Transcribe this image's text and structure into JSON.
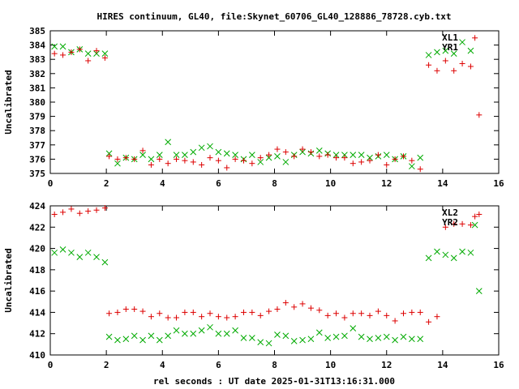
{
  "title": "HIRES continuum, GL40, file:Skynet_60706_GL40_128886_78728.cyb.txt",
  "xlabel": "rel seconds : UT date 2025-01-31T13:16:31.000",
  "colors": {
    "red": "#dd0000",
    "green": "#00aa00"
  },
  "chart_data": [
    {
      "type": "scatter",
      "ylabel": "Uncalibrated",
      "xlim": [
        0,
        16
      ],
      "ylim": [
        375,
        385
      ],
      "xticks": [
        "0",
        "2",
        "4",
        "6",
        "8",
        "10",
        "12",
        "14",
        "16"
      ],
      "yticks": [
        "375",
        "376",
        "377",
        "378",
        "379",
        "380",
        "381",
        "382",
        "383",
        "384",
        "385"
      ],
      "legend": [
        "XL1",
        "YR1"
      ],
      "legend_position": "top-right",
      "series": [
        {
          "name": "XL1",
          "marker": "x",
          "color": "green",
          "x": [
            0.15,
            0.45,
            0.75,
            1.05,
            1.35,
            1.65,
            1.95,
            2.1,
            2.4,
            2.7,
            3.0,
            3.3,
            3.6,
            3.9,
            4.2,
            4.5,
            4.8,
            5.1,
            5.4,
            5.7,
            6.0,
            6.3,
            6.6,
            6.9,
            7.2,
            7.5,
            7.8,
            8.1,
            8.4,
            8.7,
            9.0,
            9.3,
            9.6,
            9.9,
            10.2,
            10.5,
            10.8,
            11.1,
            11.4,
            11.7,
            12.0,
            12.3,
            12.6,
            12.9,
            13.2,
            13.5,
            13.8,
            14.1,
            14.4,
            14.7,
            15.0
          ],
          "y": [
            383.9,
            383.9,
            383.5,
            383.7,
            383.4,
            383.4,
            383.4,
            376.4,
            375.7,
            376.1,
            376.0,
            376.3,
            376.0,
            376.3,
            377.2,
            376.3,
            376.3,
            376.5,
            376.8,
            376.9,
            376.5,
            376.4,
            376.3,
            376.0,
            376.3,
            375.8,
            376.1,
            376.2,
            375.8,
            376.3,
            376.5,
            376.4,
            376.6,
            376.4,
            376.3,
            376.3,
            376.3,
            376.3,
            376.1,
            376.2,
            376.3,
            376.0,
            376.2,
            375.5,
            376.1,
            383.3,
            383.5,
            383.6,
            383.4,
            384.2,
            383.6
          ],
          "note_extra": [
            15.15,
            383.6
          ]
        },
        {
          "name": "YR1",
          "marker": "+",
          "color": "red",
          "x": [
            0.15,
            0.45,
            0.75,
            1.05,
            1.35,
            1.65,
            1.95,
            2.1,
            2.4,
            2.7,
            3.0,
            3.3,
            3.6,
            3.9,
            4.2,
            4.5,
            4.8,
            5.1,
            5.4,
            5.7,
            6.0,
            6.3,
            6.6,
            6.9,
            7.2,
            7.5,
            7.8,
            8.1,
            8.4,
            8.7,
            9.0,
            9.3,
            9.6,
            9.9,
            10.2,
            10.5,
            10.8,
            11.1,
            11.4,
            11.7,
            12.0,
            12.3,
            12.6,
            12.9,
            13.2,
            13.5,
            13.8,
            14.1,
            14.4,
            14.7,
            15.0,
            15.15,
            15.3
          ],
          "y": [
            383.4,
            383.3,
            383.5,
            383.7,
            382.9,
            383.6,
            383.1,
            376.2,
            376.0,
            376.1,
            376.0,
            376.6,
            375.6,
            376.0,
            375.7,
            376.0,
            375.9,
            375.8,
            375.6,
            376.1,
            375.9,
            375.4,
            376.0,
            375.9,
            375.7,
            376.1,
            376.3,
            376.7,
            376.5,
            376.2,
            376.7,
            376.5,
            376.2,
            376.3,
            376.1,
            376.1,
            375.7,
            375.8,
            375.9,
            376.3,
            375.6,
            376.0,
            376.2,
            375.9,
            375.3,
            382.6,
            382.2,
            382.9,
            382.2,
            382.7,
            382.5,
            384.5,
            379.1
          ]
        }
      ]
    },
    {
      "type": "scatter",
      "ylabel": "Uncalibrated",
      "xlim": [
        0,
        16
      ],
      "ylim": [
        410,
        424
      ],
      "xticks": [
        "0",
        "2",
        "4",
        "6",
        "8",
        "10",
        "12",
        "14",
        "16"
      ],
      "yticks": [
        "410",
        "412",
        "414",
        "416",
        "418",
        "420",
        "422",
        "424"
      ],
      "legend": [
        "XL2",
        "YR2"
      ],
      "legend_position": "top-right",
      "series": [
        {
          "name": "XL2",
          "marker": "x",
          "color": "green",
          "x": [
            0.15,
            0.45,
            0.75,
            1.05,
            1.35,
            1.65,
            1.95,
            2.1,
            2.4,
            2.7,
            3.0,
            3.3,
            3.6,
            3.9,
            4.2,
            4.5,
            4.8,
            5.1,
            5.4,
            5.7,
            6.0,
            6.3,
            6.6,
            6.9,
            7.2,
            7.5,
            7.8,
            8.1,
            8.4,
            8.7,
            9.0,
            9.3,
            9.6,
            9.9,
            10.2,
            10.5,
            10.8,
            11.1,
            11.4,
            11.7,
            12.0,
            12.3,
            12.6,
            12.9,
            13.2,
            13.5,
            13.8,
            14.1,
            14.4,
            14.7,
            15.0,
            15.15,
            15.3
          ],
          "y": [
            419.6,
            419.9,
            419.6,
            419.2,
            419.6,
            419.2,
            418.7,
            411.7,
            411.4,
            411.5,
            411.8,
            411.4,
            411.8,
            411.4,
            411.8,
            412.3,
            412.0,
            412.0,
            412.3,
            412.6,
            412.0,
            412.0,
            412.3,
            411.6,
            411.6,
            411.2,
            411.1,
            411.9,
            411.8,
            411.3,
            411.4,
            411.5,
            412.1,
            411.6,
            411.7,
            411.8,
            412.5,
            411.7,
            411.5,
            411.6,
            411.7,
            411.4,
            411.7,
            411.5,
            411.5,
            419.1,
            419.7,
            419.4,
            419.1,
            419.7,
            419.6,
            422.2,
            416.0
          ]
        },
        {
          "name": "YR2",
          "marker": "+",
          "color": "red",
          "x": [
            0.15,
            0.45,
            0.75,
            1.05,
            1.35,
            1.65,
            1.95,
            2.1,
            2.4,
            2.7,
            3.0,
            3.3,
            3.6,
            3.9,
            4.2,
            4.5,
            4.8,
            5.1,
            5.4,
            5.7,
            6.0,
            6.3,
            6.6,
            6.9,
            7.2,
            7.5,
            7.8,
            8.1,
            8.4,
            8.7,
            9.0,
            9.3,
            9.6,
            9.9,
            10.2,
            10.5,
            10.8,
            11.1,
            11.4,
            11.7,
            12.0,
            12.3,
            12.6,
            12.9,
            13.2,
            13.5,
            13.8,
            14.1,
            14.4,
            14.7,
            15.0,
            15.15,
            15.3
          ],
          "y": [
            423.2,
            423.4,
            423.7,
            423.3,
            423.5,
            423.6,
            423.8,
            413.9,
            414.0,
            414.3,
            414.3,
            414.1,
            413.6,
            413.9,
            413.5,
            413.5,
            414.0,
            414.0,
            413.6,
            413.9,
            413.6,
            413.5,
            413.6,
            414.0,
            414.0,
            413.7,
            414.1,
            414.3,
            414.9,
            414.5,
            414.8,
            414.4,
            414.2,
            413.7,
            413.9,
            413.5,
            413.9,
            413.9,
            413.7,
            414.1,
            413.7,
            413.2,
            413.9,
            414.0,
            414.0,
            413.1,
            413.6,
            422.0,
            422.3,
            422.3,
            422.2,
            423.0,
            423.2
          ]
        }
      ]
    }
  ]
}
